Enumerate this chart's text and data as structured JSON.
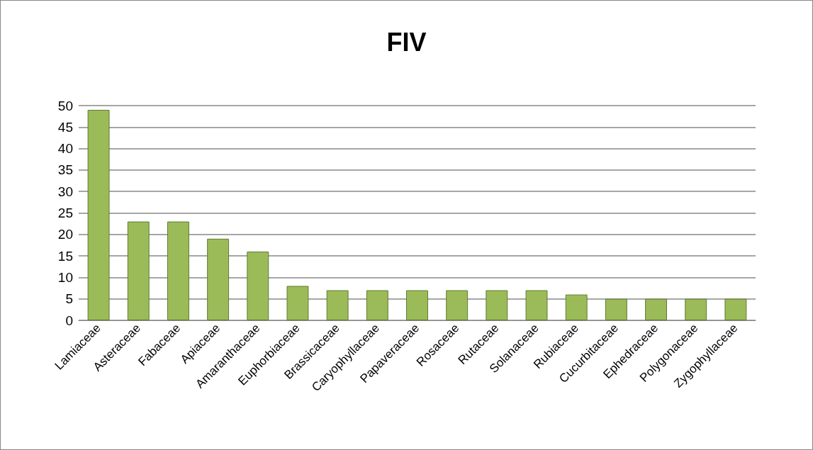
{
  "chart_data": {
    "type": "bar",
    "title": "FIV",
    "categories": [
      "Lamiaceae",
      "Asteraceae",
      "Fabaceae",
      "Apiaceae",
      "Amaranthaceae",
      "Euphorbiaceae",
      "Brassicaceae",
      "Caryophyllaceae",
      "Papaveraceae",
      "Rosaceae",
      "Rutaceae",
      "Solanaceae",
      "Rubiaceae",
      "Cucurbitaceae",
      "Ephedraceae",
      "Polygonaceae",
      "Zygophyllaceae"
    ],
    "values": [
      49,
      23,
      23,
      19,
      16,
      8,
      7,
      7,
      7,
      7,
      7,
      7,
      6,
      5,
      5,
      5,
      5
    ],
    "color": "#9bbb59",
    "ylim": [
      0,
      50
    ],
    "yticks": [
      0,
      5,
      10,
      15,
      20,
      25,
      30,
      35,
      40,
      45,
      50
    ],
    "grid": "y"
  }
}
